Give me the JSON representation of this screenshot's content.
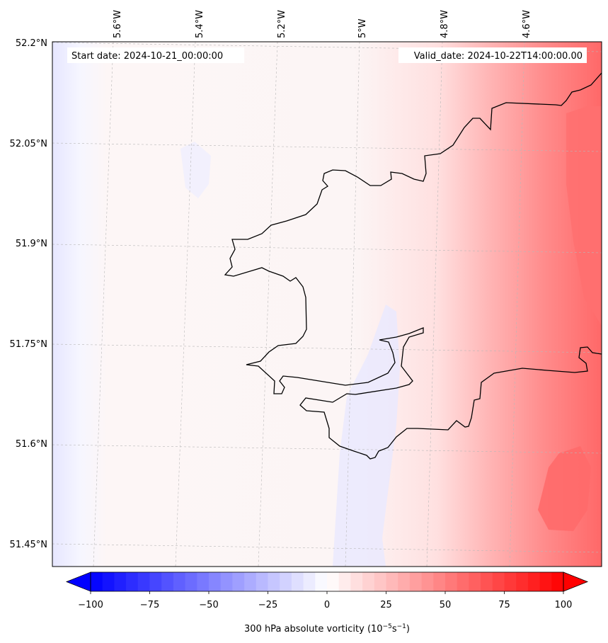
{
  "map": {
    "start_label": "Start date: 2024-10-21_00:00:00",
    "valid_label": "Valid_date: 2024-10-22T14:00:00.00",
    "lon_labels": [
      "5.6°W",
      "5.4°W",
      "5.2°W",
      "5°W",
      "4.8°W",
      "4.6°W"
    ],
    "lat_labels": [
      "52.2°N",
      "52.05°N",
      "51.9°N",
      "51.75°N",
      "51.6°N",
      "51.45°N"
    ],
    "field_description": "300 hPa absolute vorticity field; near-zero/slightly negative in west, increasing strongly positive toward east",
    "colors": {
      "negative": "#0000ff",
      "zero": "#ffffff",
      "positive": "#ff0000",
      "coast": "#000000",
      "grid": "#b0b0b0"
    }
  },
  "colorbar": {
    "ticks": [
      "−100",
      "−75",
      "−50",
      "−25",
      "0",
      "25",
      "50",
      "75",
      "100"
    ],
    "label_main": "300 hPa absolute vorticity (10",
    "label_exp1": "−5",
    "label_mid": "s",
    "label_exp2": "−1",
    "label_end": ")",
    "min": -100,
    "max": 100,
    "levels": 41
  }
}
